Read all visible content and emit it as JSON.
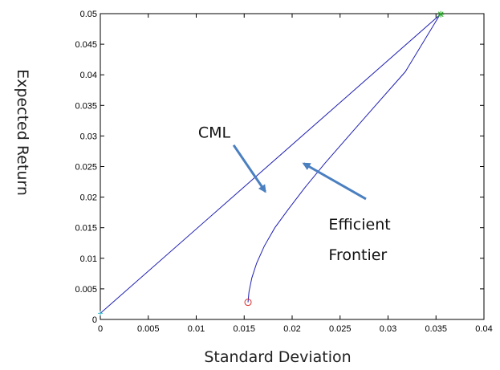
{
  "chart_data": {
    "type": "line",
    "xlabel": "Standard Deviation",
    "ylabel": "Expected Return",
    "xlim": [
      0,
      0.04
    ],
    "ylim": [
      0,
      0.05
    ],
    "x_ticks": [
      "0",
      "0.005",
      "0.01",
      "0.015",
      "0.02",
      "0.025",
      "0.03",
      "0.035",
      "0.04"
    ],
    "y_ticks": [
      "0",
      "0.005",
      "0.01",
      "0.015",
      "0.02",
      "0.025",
      "0.03",
      "0.035",
      "0.04",
      "0.045",
      "0.05"
    ],
    "grid": false,
    "series": [
      {
        "color": "#1f1fb4",
        "x": [
          0,
          0.0354
        ],
        "y": [
          0.001,
          0.0498
        ]
      },
      {
        "color": "#1f1fb4",
        "x": [
          0.0154,
          0.0155,
          0.0158,
          0.0163,
          0.0171,
          0.0182,
          0.0196,
          0.0213,
          0.0234,
          0.0259,
          0.0287,
          0.0318,
          0.0354
        ],
        "y": [
          0.0028,
          0.0045,
          0.0068,
          0.0092,
          0.012,
          0.015,
          0.018,
          0.0215,
          0.0255,
          0.03,
          0.035,
          0.0405,
          0.0498
        ]
      }
    ],
    "markers": [
      {
        "shape": "circle",
        "color": "#e0302a",
        "x": 0.0154,
        "y": 0.0028
      },
      {
        "shape": "star",
        "color": "#22aa22",
        "x": 0.0355,
        "y": 0.0499
      },
      {
        "shape": "plus",
        "color": "#44bbcc",
        "x": 0,
        "y": 0.001
      }
    ],
    "annotations": [
      {
        "lines": [
          "CML"
        ],
        "text_x": 0.0102,
        "text_y": 0.0297,
        "arrow_from": [
          0.0139,
          0.0285
        ],
        "arrow_to": [
          0.0172,
          0.0209
        ],
        "color": "#4a7fc0"
      },
      {
        "lines": [
          "Efficient",
          "Frontier"
        ],
        "text_x": 0.0238,
        "text_y": 0.0147,
        "arrow_from": [
          0.0277,
          0.0197
        ],
        "arrow_to": [
          0.0212,
          0.0255
        ],
        "color": "#4a7fc0"
      }
    ]
  }
}
